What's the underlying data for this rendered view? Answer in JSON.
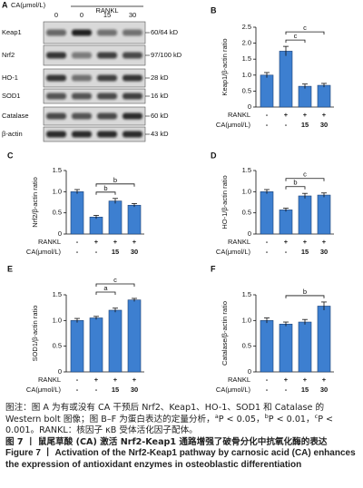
{
  "blot": {
    "panel": "A",
    "dose_label": "CA(μmol/L)",
    "doses": [
      "0",
      "0",
      "15",
      "30"
    ],
    "treatment": "RANKL",
    "rows": [
      {
        "protein": "Keap1",
        "size": "60/64 kD"
      },
      {
        "protein": "Nrf2",
        "size": "97/100 kD"
      },
      {
        "protein": "HO-1",
        "size": "28 kD"
      },
      {
        "protein": "SOD1",
        "size": "16 kD"
      },
      {
        "protein": "Catalase",
        "size": "60 kD"
      },
      {
        "protein": "β-actin",
        "size": "43 kD"
      }
    ]
  },
  "chart_data": [
    {
      "type": "bar",
      "panel": "B",
      "y_label": "Keap1/β-actin ratio",
      "color": "#3d7fd0",
      "values": [
        1.0,
        1.75,
        0.65,
        0.68
      ],
      "errors": [
        0.08,
        0.15,
        0.07,
        0.06
      ],
      "ylim": [
        0,
        2.5
      ],
      "yticks": [
        0,
        0.5,
        {
          "value": 1,
          "label": "1.0"
        },
        1.5,
        {
          "value": 2,
          "label": "2.0"
        },
        2.5
      ],
      "rows": [
        {
          "label": "RANKL",
          "cells": [
            "-",
            "+",
            "+",
            "+"
          ]
        },
        {
          "label": "CA(μmol/L)",
          "cells": [
            "-",
            "-",
            "15",
            "30"
          ]
        }
      ],
      "significance": [
        {
          "from": 1,
          "to": 3,
          "label": "c"
        },
        {
          "from": 1,
          "to": 2,
          "label": "c"
        }
      ]
    },
    {
      "type": "bar",
      "panel": "C",
      "y_label": "Nrf2/β-actin ratio",
      "color": "#3d7fd0",
      "values": [
        1.0,
        0.4,
        0.78,
        0.68
      ],
      "errors": [
        0.05,
        0.04,
        0.06,
        0.04
      ],
      "ylim": [
        0,
        1.5
      ],
      "yticks": [
        0,
        0.5,
        {
          "value": 1,
          "label": "1.0"
        },
        1.5
      ],
      "rows": [
        {
          "label": "RANKL",
          "cells": [
            "-",
            "+",
            "+",
            "+"
          ]
        },
        {
          "label": "CA(μmol/L)",
          "cells": [
            "-",
            "-",
            "15",
            "30"
          ]
        }
      ],
      "significance": [
        {
          "from": 1,
          "to": 3,
          "label": "b"
        },
        {
          "from": 1,
          "to": 2,
          "label": "b"
        }
      ]
    },
    {
      "type": "bar",
      "panel": "D",
      "y_label": "HO-1/β-actin ratio",
      "color": "#3d7fd0",
      "values": [
        1.0,
        0.57,
        0.9,
        0.92
      ],
      "errors": [
        0.05,
        0.04,
        0.06,
        0.05
      ],
      "ylim": [
        0,
        1.5
      ],
      "yticks": [
        0,
        0.5,
        {
          "value": 1,
          "label": "1.0"
        },
        1.5
      ],
      "rows": [
        {
          "label": "RANKL",
          "cells": [
            "-",
            "+",
            "+",
            "+"
          ]
        },
        {
          "label": "CA(μmol/L)",
          "cells": [
            "-",
            "-",
            "15",
            "30"
          ]
        }
      ],
      "significance": [
        {
          "from": 1,
          "to": 3,
          "label": "c"
        },
        {
          "from": 1,
          "to": 2,
          "label": "b"
        }
      ]
    },
    {
      "type": "bar",
      "panel": "E",
      "y_label": "SOD1/β-actin ratio",
      "color": "#3d7fd0",
      "values": [
        1.0,
        1.05,
        1.2,
        1.4
      ],
      "errors": [
        0.04,
        0.03,
        0.04,
        0.03
      ],
      "ylim": [
        0,
        1.5
      ],
      "yticks": [
        0,
        0.5,
        {
          "value": 1,
          "label": "1.0"
        },
        1.5
      ],
      "rows": [
        {
          "label": "RANKL",
          "cells": [
            "-",
            "+",
            "+",
            "+"
          ]
        },
        {
          "label": "CA(μmol/L)",
          "cells": [
            "-",
            "-",
            "15",
            "30"
          ]
        }
      ],
      "significance": [
        {
          "from": 1,
          "to": 3,
          "label": "c"
        },
        {
          "from": 1,
          "to": 2,
          "label": "a"
        }
      ]
    },
    {
      "type": "bar",
      "panel": "F",
      "y_label": "Catalase/β-actin ratio",
      "color": "#3d7fd0",
      "values": [
        1.0,
        0.93,
        0.97,
        1.28
      ],
      "errors": [
        0.05,
        0.04,
        0.05,
        0.08
      ],
      "ylim": [
        0,
        1.5
      ],
      "yticks": [
        0,
        0.5,
        {
          "value": 1,
          "label": "1.0"
        },
        1.5
      ],
      "rows": [
        {
          "label": "RANKL",
          "cells": [
            "-",
            "+",
            "+",
            "+"
          ]
        },
        {
          "label": "CA(μmol/L)",
          "cells": [
            "-",
            "-",
            "15",
            "30"
          ]
        }
      ],
      "significance": [
        {
          "from": 1,
          "to": 3,
          "label": "b"
        }
      ]
    }
  ],
  "caption": {
    "note": "图注：图 A 为有或没有 CA 干预后 Nrf2、Keap1、HO-1、SOD1 和 Catalase 的 Western bolt 图像；图 B–F 为蛋白表达的定量分析，",
    "significance": [
      {
        "mark": "a",
        "text": "P < 0.05，"
      },
      {
        "mark": "b",
        "text": "P < 0.01，"
      },
      {
        "mark": "c",
        "text": "P < 0.001。"
      }
    ],
    "abbreviation": "RANKL：核因子 κB 受体活化因子配体。",
    "title_zh": "图 7 丨 鼠尾草酸 (CA) 激活 Nrf2-Keap1 通路增强了破骨分化中抗氧化酶的表达",
    "title_en": "Figure 7 丨 Activation of the Nrf2-Keap1 pathway by carnosic acid (CA) enhances the expression of antioxidant enzymes in osteoblastic differentiation"
  }
}
